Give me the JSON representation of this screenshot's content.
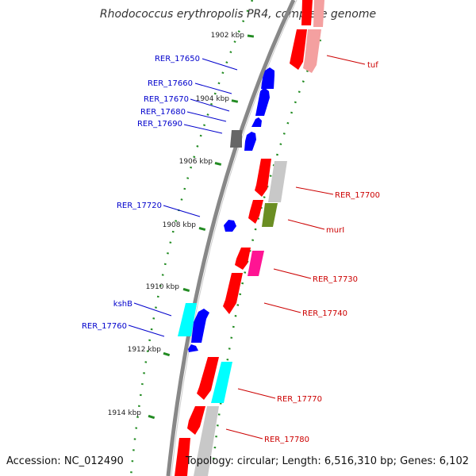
{
  "title": "Rhodococcus erythropolis PR4, complete genome",
  "footer": {
    "accession": "Accession: NC_012490",
    "stats": "Topology: circular; Length: 6,516,310 bp; Genes: 6,102"
  },
  "colors": {
    "backbone": "#888888",
    "tick": "#228B22",
    "left_label": "#0000CC",
    "right_label": "#CC0000",
    "blue": "#0000FF",
    "red": "#FF0000",
    "pink": "#F4A0A0",
    "gray": "#C8C8C8",
    "darkgray": "#666666",
    "olive": "#6B8E23",
    "magenta": "#FF1493",
    "cyan": "#00FFFF"
  },
  "ticks": [
    "1902 kbp",
    "1904 kbp",
    "1906 kbp",
    "1908 kbp",
    "1910 kbp",
    "1912 kbp",
    "1914 kbp"
  ],
  "left_genes": [
    "RER_17650",
    "RER_17660",
    "RER_17670",
    "RER_17680",
    "RER_17690",
    "RER_17720",
    "kshB",
    "RER_17760"
  ],
  "right_genes": [
    "tuf",
    "RER_17700",
    "murI",
    "RER_17730",
    "RER_17740",
    "RER_17770",
    "RER_17780"
  ]
}
